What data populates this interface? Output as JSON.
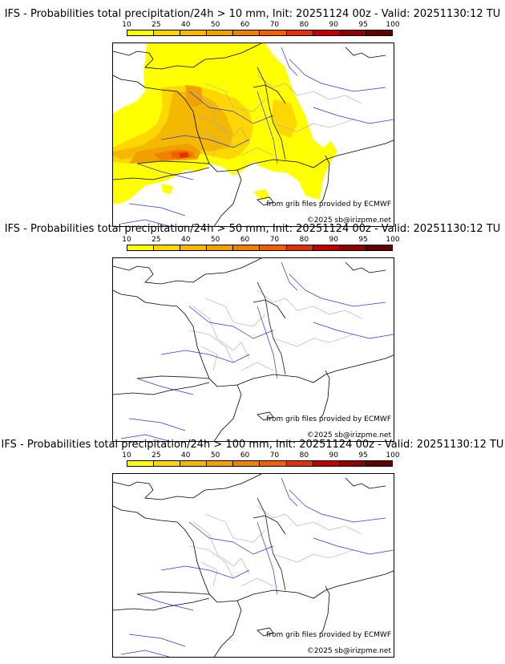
{
  "panels": [
    {
      "title": "IFS - Probabilities total precipitation/24h > 10 mm, Init: 20251124 00z - Valid: 20251130:12 TU"
    },
    {
      "title": "IFS - Probabilities total precipitation/24h > 50 mm, Init: 20251124 00z - Valid: 20251130:12 TU"
    },
    {
      "title": "IFS - Probabilities total precipitation/24h > 100 mm, Init: 20251124 00z - Valid: 20251130:12 TU"
    }
  ],
  "scale": {
    "ticks": [
      "10",
      "25",
      "40",
      "50",
      "60",
      "70",
      "80",
      "90",
      "95",
      "100"
    ],
    "colors": [
      "#ffff00",
      "#ffd700",
      "#f5b800",
      "#f0a000",
      "#f08000",
      "#f06000",
      "#e03010",
      "#c00000",
      "#900000",
      "#600000"
    ]
  },
  "credits": {
    "source": "from grib files provided by ECMWF",
    "copyright": "©2025 sb@irizpme.net"
  },
  "colors": {
    "coast": "#000000",
    "rivers": "#3333dd",
    "borders": "#aaaaaa",
    "precip_low": "#ffff00",
    "precip_mid": "#f5b800",
    "precip_high": "#e03010"
  }
}
